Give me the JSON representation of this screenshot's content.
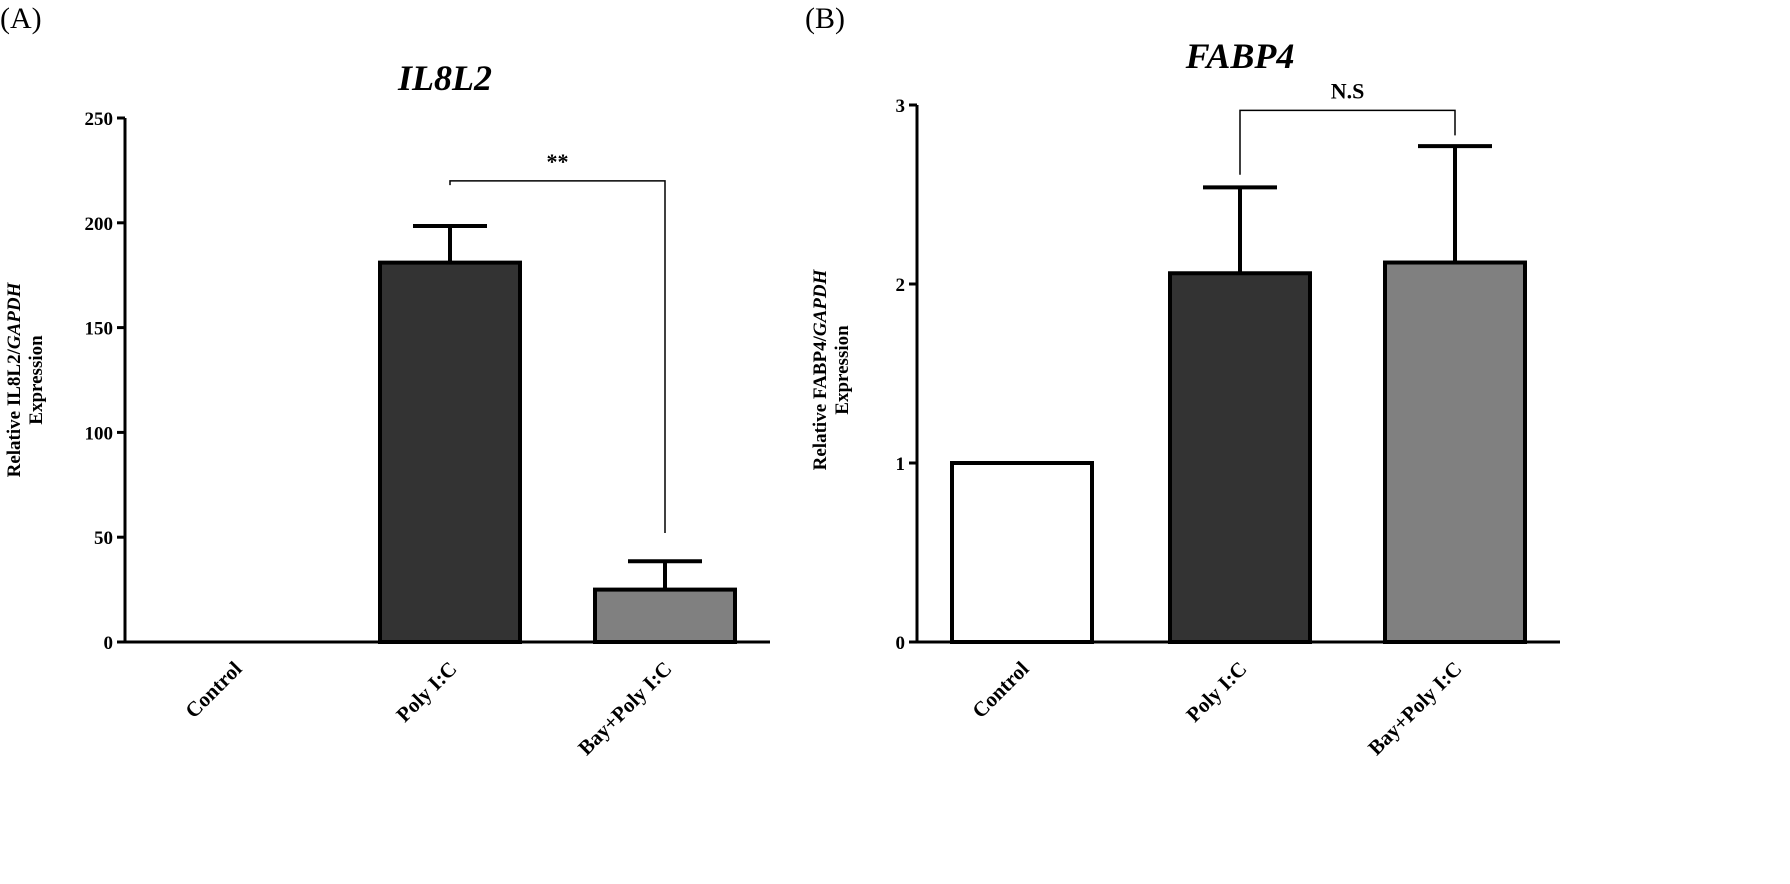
{
  "chart_data": [
    {
      "type": "bar",
      "panel_label": "(A)",
      "title": "IL8L2",
      "ylabel_line1": "Relative IL8L2/",
      "ylabel_line1_italic": "GAPDH",
      "ylabel_line2": "Expression",
      "categories": [
        "Control",
        "Poly I:C",
        "Bay+Poly I:C"
      ],
      "values": [
        0,
        181,
        25
      ],
      "errors": [
        0,
        17.5,
        13.5
      ],
      "bar_colors": [
        "#ffffff",
        "#333333",
        "#808080"
      ],
      "ylim": [
        0,
        250
      ],
      "yticks": [
        0,
        50,
        100,
        150,
        200,
        250
      ],
      "significance": {
        "from": 1,
        "to": 2,
        "label": "**",
        "y_from": 218,
        "y_to": 52,
        "y_top": 220
      }
    },
    {
      "type": "bar",
      "panel_label": "(B)",
      "title": "FABP4",
      "ylabel_line1": "Relative FABP4/",
      "ylabel_line1_italic": "GAPDH",
      "ylabel_line2": "Expression",
      "categories": [
        "Control",
        "Poly I:C",
        "Bay+Poly I:C"
      ],
      "values": [
        1,
        2.06,
        2.12
      ],
      "errors": [
        0,
        0.48,
        0.65
      ],
      "bar_colors": [
        "#ffffff",
        "#333333",
        "#808080"
      ],
      "ylim": [
        0,
        3
      ],
      "yticks": [
        0,
        1,
        2,
        3
      ],
      "significance": {
        "from": 1,
        "to": 2,
        "label": "N.S",
        "y_from": 2.61,
        "y_to": 2.83,
        "y_top": 2.97
      }
    }
  ]
}
